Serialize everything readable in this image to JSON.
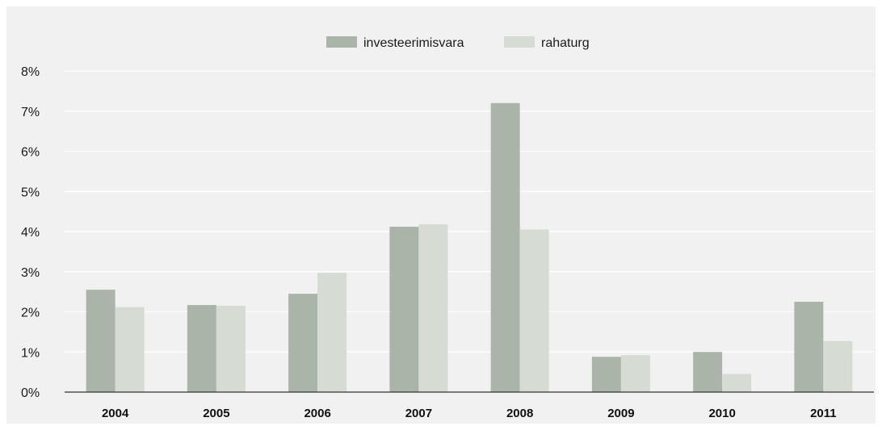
{
  "chart_data": {
    "type": "bar",
    "categories": [
      "2004",
      "2005",
      "2006",
      "2007",
      "2008",
      "2009",
      "2010",
      "2011"
    ],
    "series": [
      {
        "name": "investeerimisvara",
        "color": "#abb4a9",
        "values": [
          2.55,
          2.17,
          2.45,
          4.12,
          7.2,
          0.88,
          1.0,
          2.25
        ]
      },
      {
        "name": "rahaturg",
        "color": "#d6dbd4",
        "values": [
          2.12,
          2.15,
          2.97,
          4.18,
          4.05,
          0.92,
          0.45,
          1.27
        ]
      }
    ],
    "y_ticks": [
      "0%",
      "1%",
      "2%",
      "3%",
      "4%",
      "5%",
      "6%",
      "7%",
      "8%"
    ],
    "ylim": [
      0,
      8
    ],
    "ylabel": "",
    "xlabel": "",
    "grid": true,
    "legend_position": "top-center"
  },
  "colors": {
    "background": "#f1f1f1",
    "gridline": "#ffffff",
    "axis": "#333333"
  }
}
